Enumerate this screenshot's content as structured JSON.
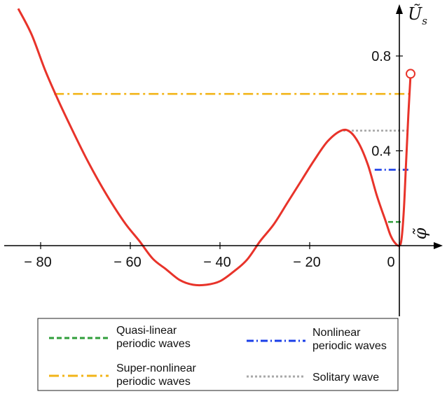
{
  "chart_data": {
    "type": "line",
    "xlabel": "φ̃",
    "ylabel_main": "Ũ",
    "ylabel_sub": "s",
    "xlim": [
      -87,
      6
    ],
    "ylim": [
      -0.28,
      1.0
    ],
    "x_ticks": [
      {
        "value": -80,
        "label": "− 80"
      },
      {
        "value": -60,
        "label": "− 60"
      },
      {
        "value": -40,
        "label": "− 40"
      },
      {
        "value": -20,
        "label": "− 20"
      },
      {
        "value": 0,
        "label": "0"
      }
    ],
    "y_ticks": [
      {
        "value": 0.4,
        "label": "0.4"
      },
      {
        "value": 0.8,
        "label": "0.8"
      }
    ],
    "potential_curve": {
      "name": "",
      "color": "#e8332a",
      "x": [
        -85,
        -82,
        -79,
        -76,
        -73,
        -70,
        -67,
        -64,
        -61,
        -58,
        -55,
        -52,
        -49,
        -46,
        -43,
        -40,
        -37,
        -34,
        -31,
        -28,
        -25,
        -22,
        -19,
        -16,
        -13,
        -11,
        -9,
        -7,
        -5,
        -3,
        -2,
        -1,
        0,
        0.5,
        1,
        1.5,
        2,
        2.5
      ],
      "y": [
        1.0,
        0.89,
        0.74,
        0.61,
        0.49,
        0.375,
        0.27,
        0.175,
        0.09,
        0.02,
        -0.055,
        -0.1,
        -0.145,
        -0.165,
        -0.165,
        -0.15,
        -0.11,
        -0.06,
        0.02,
        0.09,
        0.18,
        0.27,
        0.36,
        0.44,
        0.485,
        0.48,
        0.43,
        0.34,
        0.21,
        0.1,
        0.045,
        0.012,
        0.0,
        0.03,
        0.15,
        0.35,
        0.55,
        0.72
      ]
    },
    "endpoint_marker": {
      "x": 2.5,
      "y": 0.725
    },
    "levels": [
      {
        "key": "quasi",
        "y": 0.1,
        "x_from": -2.5,
        "x_to": 0.3,
        "color": "#2f9e3a",
        "dash": "7 4"
      },
      {
        "key": "nonlinear",
        "y": 0.32,
        "x_from": -5.5,
        "x_to": 2.0,
        "color": "#1a3ee8",
        "dash": "10 4 2 4"
      },
      {
        "key": "super",
        "y": 0.64,
        "x_from": -77,
        "x_to": 2.3,
        "color": "#f2b418",
        "dash": "14 5 3 5"
      },
      {
        "key": "solitary",
        "y": 0.485,
        "x_from": -12.5,
        "x_to": 2.0,
        "color": "#a8a8a8",
        "dash": "3 3"
      }
    ],
    "legend": {
      "placement": "bottom",
      "entries": [
        {
          "key": "quasi",
          "line1": "Quasi-linear",
          "line2": "periodic waves"
        },
        {
          "key": "nonlinear",
          "line1": "Nonlinear",
          "line2": "periodic waves"
        },
        {
          "key": "super",
          "line1": "Super-nonlinear",
          "line2": "periodic waves"
        },
        {
          "key": "solitary",
          "line1": "Solitary wave",
          "line2": ""
        }
      ]
    }
  }
}
